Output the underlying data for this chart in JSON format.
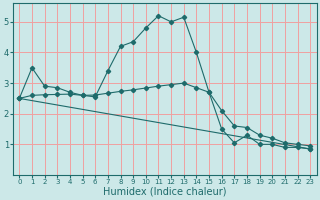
{
  "title": "",
  "xlabel": "Humidex (Indice chaleur)",
  "xlim": [
    -0.5,
    23.5
  ],
  "ylim": [
    0,
    5.6
  ],
  "yticks": [
    1,
    2,
    3,
    4,
    5
  ],
  "xticks": [
    0,
    1,
    2,
    3,
    4,
    5,
    6,
    7,
    8,
    9,
    10,
    11,
    12,
    13,
    14,
    15,
    16,
    17,
    18,
    19,
    20,
    21,
    22,
    23
  ],
  "background_color": "#cce8e8",
  "grid_color": "#f0a0a0",
  "line_color": "#1e6b6b",
  "series": [
    {
      "x": [
        0,
        1,
        2,
        3,
        4,
        5,
        6,
        7,
        8,
        9,
        10,
        11,
        12,
        13,
        14,
        15,
        16,
        17,
        18,
        19,
        20,
        21,
        22,
        23
      ],
      "y": [
        2.5,
        3.5,
        2.9,
        2.85,
        2.7,
        2.6,
        2.55,
        3.4,
        4.2,
        4.35,
        4.8,
        5.2,
        5.0,
        5.15,
        4.0,
        2.7,
        1.5,
        1.05,
        1.3,
        1.0,
        1.0,
        0.9,
        0.9,
        0.85
      ]
    },
    {
      "x": [
        0,
        1,
        2,
        3,
        4,
        5,
        6,
        7,
        8,
        9,
        10,
        11,
        12,
        13,
        14,
        15,
        16,
        17,
        18,
        19,
        20,
        21,
        22,
        23
      ],
      "y": [
        2.5,
        2.6,
        2.62,
        2.63,
        2.64,
        2.6,
        2.61,
        2.67,
        2.73,
        2.78,
        2.84,
        2.9,
        2.95,
        3.0,
        2.85,
        2.7,
        2.1,
        1.6,
        1.55,
        1.3,
        1.2,
        1.05,
        1.0,
        0.95
      ]
    },
    {
      "x": [
        0,
        23
      ],
      "y": [
        2.5,
        0.85
      ]
    }
  ]
}
